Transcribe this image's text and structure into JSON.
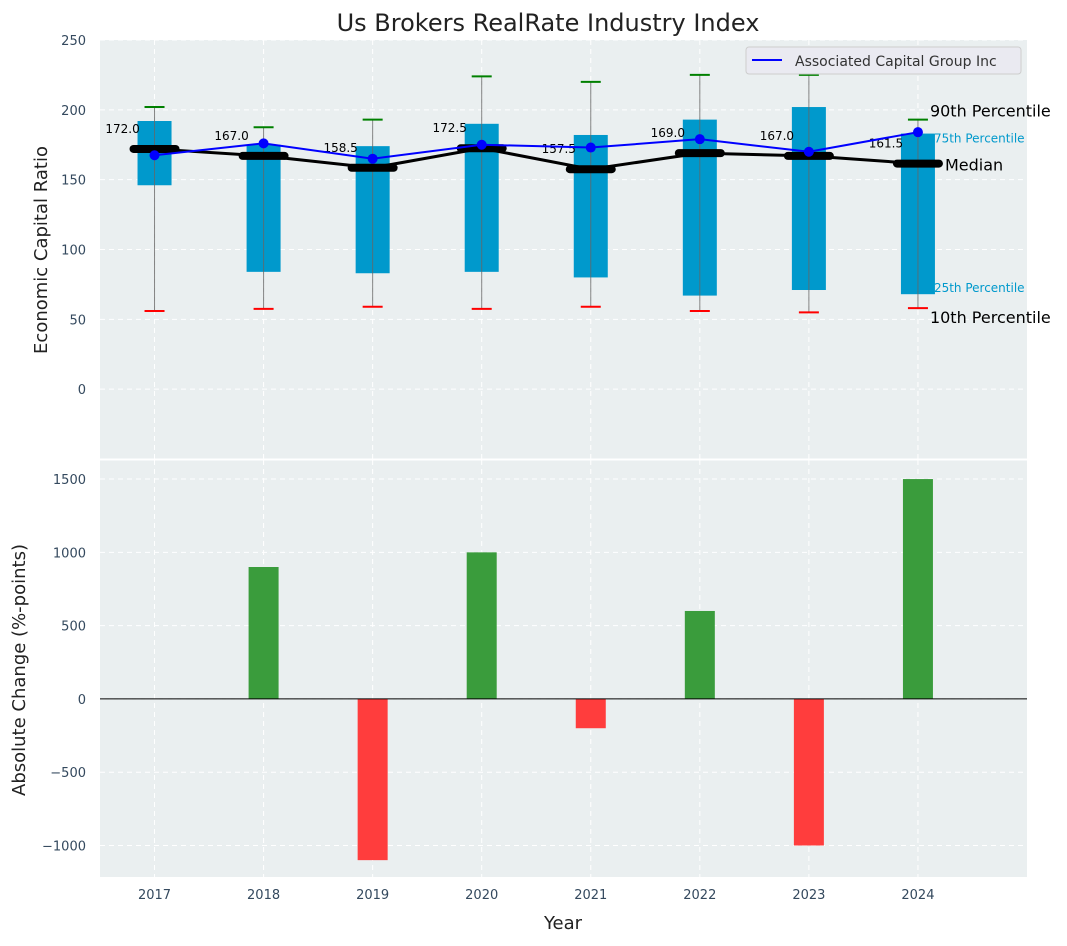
{
  "chart_data": [
    {
      "type": "box",
      "title": "Us Brokers RealRate Industry Index",
      "xlabel": "",
      "ylabel": "Economic Capital Ratio",
      "ylim": [
        -50,
        250
      ],
      "yticks": [
        0,
        50,
        100,
        150,
        200,
        250
      ],
      "xlim": [
        2016.5,
        2025
      ],
      "grid": true,
      "legend": {
        "position": "top-right",
        "entries": [
          "Associated Capital Group Inc"
        ]
      },
      "categories": [
        2017,
        2018,
        2019,
        2020,
        2021,
        2022,
        2023,
        2024
      ],
      "p10": [
        56,
        57.5,
        59,
        57.5,
        59,
        56,
        55,
        58
      ],
      "p25": [
        146,
        84,
        83,
        84,
        80,
        67,
        71,
        68
      ],
      "median": [
        172.0,
        167.0,
        158.5,
        172.5,
        157.5,
        169.0,
        167.0,
        161.5
      ],
      "p75": [
        192,
        175,
        174,
        190,
        182,
        193,
        202,
        183
      ],
      "p90": [
        202,
        187.5,
        193,
        224,
        220,
        225,
        225,
        193
      ],
      "median_labels": [
        "172.0",
        "167.0",
        "158.5",
        "172.5",
        "157.5",
        "169.0",
        "167.0",
        "161.5"
      ],
      "series": [
        {
          "name": "Associated Capital Group Inc",
          "values": [
            167.5,
            176,
            165,
            175,
            173,
            179,
            170,
            184
          ]
        }
      ],
      "annotations": [
        "90th Percentile",
        "75th Percentile",
        "Median",
        "25th Percentile",
        "10th Percentile"
      ],
      "colors": {
        "box": "#0099cc",
        "p90": "#008000",
        "p10": "#ff0000",
        "median": "#000000",
        "series": "#0000ff",
        "bg": "#eaeff0"
      }
    },
    {
      "type": "bar",
      "xlabel": "Year",
      "ylabel": "Absolute Change (%-points)",
      "ylim": [
        -1215,
        1630
      ],
      "yticks": [
        -1000,
        -500,
        0,
        500,
        1000,
        1500
      ],
      "ytick_labels": [
        "−1000",
        "−500",
        "0",
        "500",
        "1000",
        "1500"
      ],
      "categories": [
        2017,
        2018,
        2019,
        2020,
        2021,
        2022,
        2023,
        2024
      ],
      "values": [
        0,
        900,
        -1100,
        1000,
        -200,
        600,
        -1000,
        1500
      ],
      "colors": {
        "positive": "#3a9c3c",
        "negative": "#ff3d3d"
      }
    }
  ]
}
